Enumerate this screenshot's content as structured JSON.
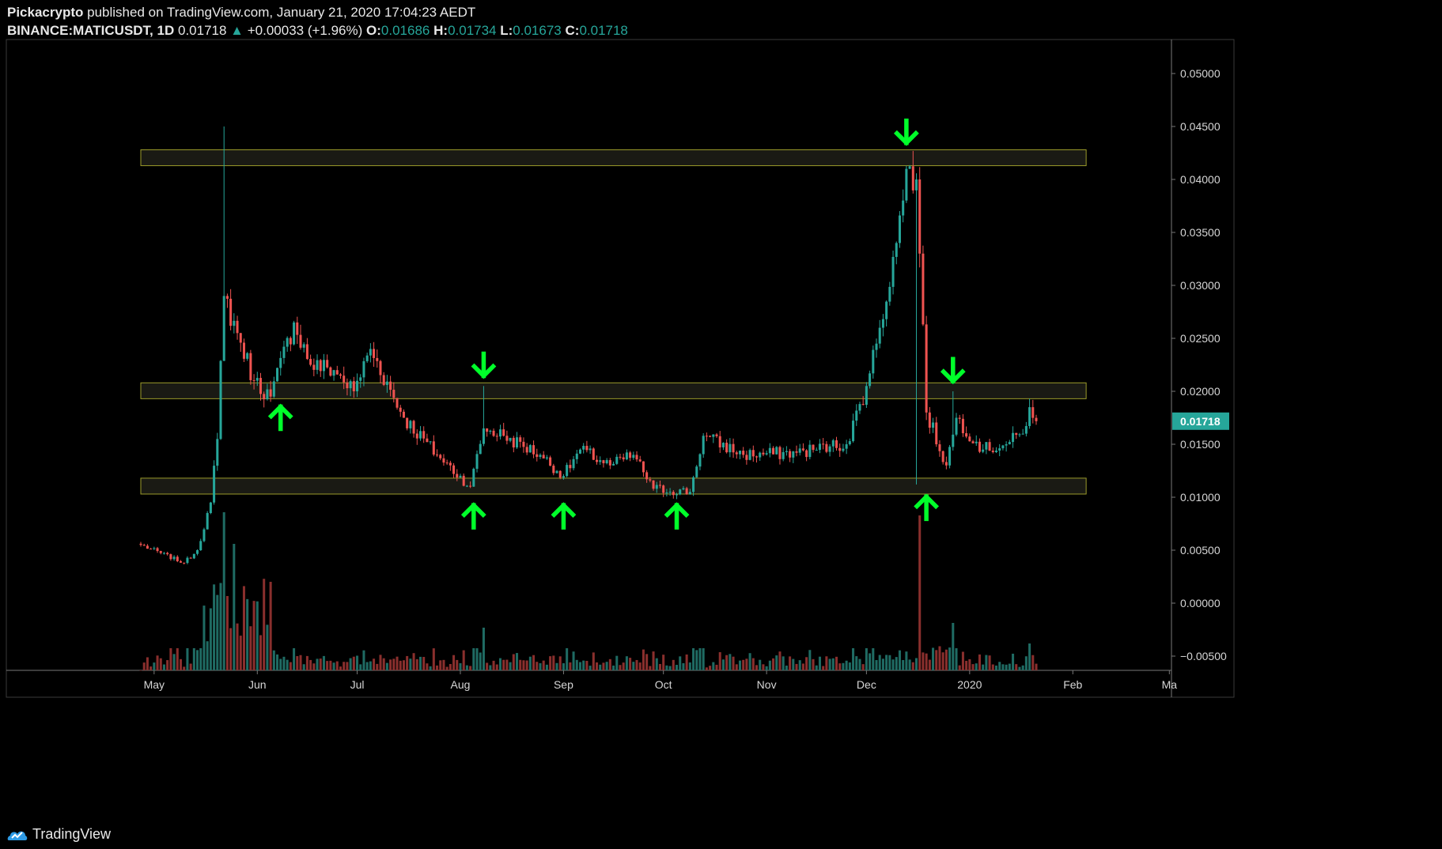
{
  "header": {
    "publisher": "Pickacrypto",
    "published_text": " published on TradingView.com, January 21, 2020 17:04:23 AEDT",
    "symbol": "BINANCE:MATICUSDT, 1D",
    "last": "0.01718",
    "change_arrow": "▲",
    "change": "+0.00033 (+1.96%)",
    "o_label": "O:",
    "o": "0.01686",
    "h_label": "H:",
    "h": "0.01734",
    "l_label": "L:",
    "l": "0.01673",
    "c_label": "C:",
    "c": "0.01718"
  },
  "footer": {
    "brand": "TradingView",
    "logo_icon": "tradingview-logo-icon"
  },
  "colors": {
    "up": "#26a69a",
    "down": "#ef5350",
    "zone_fill": "#1e1f17",
    "zone_stroke": "#9a9a2a",
    "arrow": "#00ff2a",
    "axis_text": "#d6d6d6",
    "price_tag": "#26a69a"
  },
  "chart_data": {
    "type": "candlestick",
    "symbol": "BINANCE:MATICUSDT",
    "interval": "1D",
    "x_start": "2019-04-27",
    "x_end": "2020-01-21",
    "xlabels": [
      "May",
      "Jun",
      "Jul",
      "Aug",
      "Sep",
      "Oct",
      "Nov",
      "Dec",
      "2020",
      "Feb",
      "Ma"
    ],
    "ylim": [
      -0.006,
      0.0525
    ],
    "yticks": [
      "0.05000",
      "0.04500",
      "0.04000",
      "0.03500",
      "0.03000",
      "0.02500",
      "0.02000",
      "0.01500",
      "0.01000",
      "0.00500",
      "0.00000",
      "−0.00500"
    ],
    "last_price": "0.01718",
    "price_keypoints": [
      [
        "2019-04-27",
        0.0055
      ],
      [
        "2019-05-10",
        0.0038
      ],
      [
        "2019-05-14",
        0.005
      ],
      [
        "2019-05-18",
        0.0095
      ],
      [
        "2019-05-20",
        0.0155
      ],
      [
        "2019-05-22",
        0.029
      ],
      [
        "2019-05-26",
        0.0255
      ],
      [
        "2019-05-31",
        0.021
      ],
      [
        "2019-06-05",
        0.0195
      ],
      [
        "2019-06-12",
        0.0265
      ],
      [
        "2019-06-17",
        0.0225
      ],
      [
        "2019-06-24",
        0.022
      ],
      [
        "2019-06-30",
        0.02
      ],
      [
        "2019-07-05",
        0.024
      ],
      [
        "2019-07-15",
        0.0175
      ],
      [
        "2019-07-25",
        0.014
      ],
      [
        "2019-08-04",
        0.011
      ],
      [
        "2019-08-08",
        0.0165
      ],
      [
        "2019-08-14",
        0.0158
      ],
      [
        "2019-08-25",
        0.014
      ],
      [
        "2019-09-01",
        0.012
      ],
      [
        "2019-09-06",
        0.0145
      ],
      [
        "2019-09-15",
        0.013
      ],
      [
        "2019-09-22",
        0.014
      ],
      [
        "2019-09-28",
        0.0108
      ],
      [
        "2019-10-09",
        0.0105
      ],
      [
        "2019-10-13",
        0.0158
      ],
      [
        "2019-10-25",
        0.014
      ],
      [
        "2019-11-10",
        0.0142
      ],
      [
        "2019-11-20",
        0.0148
      ],
      [
        "2019-11-25",
        0.015
      ],
      [
        "2019-12-01",
        0.0205
      ],
      [
        "2019-12-05",
        0.026
      ],
      [
        "2019-12-10",
        0.034
      ],
      [
        "2019-12-13",
        0.041
      ],
      [
        "2019-12-16",
        0.04
      ],
      [
        "2019-12-17",
        0.033
      ],
      [
        "2019-12-19",
        0.018
      ],
      [
        "2019-12-25",
        0.013
      ],
      [
        "2019-12-28",
        0.0175
      ],
      [
        "2020-01-05",
        0.0145
      ],
      [
        "2020-01-12",
        0.015
      ],
      [
        "2020-01-17",
        0.016
      ],
      [
        "2020-01-19",
        0.0185
      ],
      [
        "2020-01-21",
        0.01718
      ]
    ],
    "spikes": [
      {
        "date": "2019-05-22",
        "high": 0.045
      },
      {
        "date": "2019-08-08",
        "high": 0.0205
      },
      {
        "date": "2019-12-16",
        "low": 0.0112
      },
      {
        "date": "2019-12-27",
        "high": 0.02
      },
      {
        "date": "2020-01-19",
        "high": 0.0193
      }
    ],
    "volume_spikes": [
      {
        "date": "2019-04-27",
        "v": 0.0
      },
      {
        "date": "2019-05-22",
        "v": 1.0
      },
      {
        "date": "2019-05-25",
        "v": 0.8
      },
      {
        "date": "2019-08-08",
        "v": 0.27
      },
      {
        "date": "2019-12-17",
        "v": 0.98
      },
      {
        "date": "2019-12-27",
        "v": 0.3
      },
      {
        "date": "2020-01-19",
        "v": 0.17
      }
    ],
    "zones": [
      {
        "name": "resistance",
        "low": 0.0413,
        "high": 0.0428,
        "from": "2019-04-27",
        "to": "2020-02-05"
      },
      {
        "name": "mid",
        "low": 0.0193,
        "high": 0.0208,
        "from": "2019-04-27",
        "to": "2020-02-05"
      },
      {
        "name": "support",
        "low": 0.0103,
        "high": 0.0118,
        "from": "2019-04-27",
        "to": "2020-02-05"
      }
    ],
    "annotations": [
      {
        "type": "arrow-up",
        "date": "2019-06-08",
        "price": 0.0175
      },
      {
        "type": "arrow-up",
        "date": "2019-08-05",
        "price": 0.0082
      },
      {
        "type": "arrow-up",
        "date": "2019-09-01",
        "price": 0.0082
      },
      {
        "type": "arrow-up",
        "date": "2019-10-05",
        "price": 0.0082
      },
      {
        "type": "arrow-up",
        "date": "2019-12-19",
        "price": 0.009
      },
      {
        "type": "arrow-down",
        "date": "2019-08-08",
        "price": 0.0225
      },
      {
        "type": "arrow-down",
        "date": "2019-12-13",
        "price": 0.0445
      },
      {
        "type": "arrow-down",
        "date": "2019-12-27",
        "price": 0.022
      }
    ]
  }
}
